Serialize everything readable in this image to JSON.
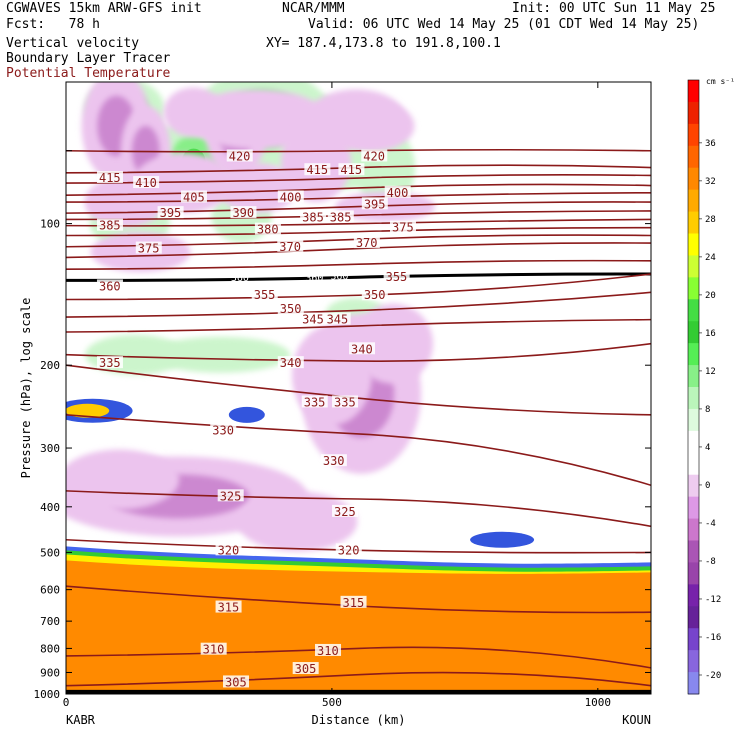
{
  "header": {
    "model": "CGWAVES 15km ARW-GFS init",
    "fcst": "Fcst:   78 h",
    "org": "NCAR/MMM",
    "init": "Init: 00 UTC Sun 11 May 25",
    "valid": "Valid: 06 UTC Wed 14 May 25 (01 CDT Wed 14 May 25)",
    "fields": [
      "Vertical velocity",
      "Boundary Layer Tracer",
      "Potential Temperature"
    ],
    "xy": "XY= 187.4,173.8 to 191.8,100.1",
    "theta_color": "#8b1a1a"
  },
  "chart_data": {
    "type": "heatmap",
    "ylabel": "Pressure (hPa), log scale",
    "xlabel": "Distance (km)",
    "left_station": "KABR",
    "right_station": "KOUN",
    "xlim": [
      0,
      1100
    ],
    "ylim_hpa": [
      1000,
      50
    ],
    "x_ticks": [
      0,
      500,
      1000
    ],
    "y_ticks": [
      100,
      200,
      300,
      400,
      500,
      600,
      700,
      800,
      900,
      1000
    ],
    "colorbar": {
      "unit": "cm s⁻¹",
      "labels": [
        "36",
        "32",
        "28",
        "24",
        "20",
        "16",
        "12",
        "8",
        "4",
        "0",
        "-4",
        "-8",
        "-12",
        "-16",
        "-20"
      ],
      "colors": [
        "#ff0000",
        "#ee2200",
        "#ff4400",
        "#ff6600",
        "#ff8800",
        "#ffaa00",
        "#ffcc00",
        "#ffff00",
        "#ccff33",
        "#88ff33",
        "#44dd44",
        "#33cc33",
        "#55ee55",
        "#88f088",
        "#bbf5bb",
        "#ddfadd",
        "#ffffff",
        "#ffffff",
        "#eeccf0",
        "#dd99e6",
        "#cc77cc",
        "#aa55b5",
        "#9944aa",
        "#7722aa",
        "#662299",
        "#7744cc",
        "#8866dd",
        "#8888ee"
      ]
    },
    "theta_labels": [
      {
        "v": "420",
        "x": 306,
        "p": 72
      },
      {
        "v": "420",
        "x": 559,
        "p": 72
      },
      {
        "v": "415",
        "x": 62,
        "p": 80
      },
      {
        "v": "415",
        "x": 452,
        "p": 77
      },
      {
        "v": "415",
        "x": 516,
        "p": 77
      },
      {
        "v": "410",
        "x": 130,
        "p": 82
      },
      {
        "v": "405",
        "x": 220,
        "p": 88
      },
      {
        "v": "400",
        "x": 402,
        "p": 88
      },
      {
        "v": "400",
        "x": 603,
        "p": 86
      },
      {
        "v": "395",
        "x": 176,
        "p": 95
      },
      {
        "v": "395",
        "x": 560,
        "p": 91
      },
      {
        "v": "390",
        "x": 313,
        "p": 95
      },
      {
        "v": "385",
        "x": 62,
        "p": 101
      },
      {
        "v": "385",
        "x": 444,
        "p": 97
      },
      {
        "v": "385",
        "x": 496,
        "p": 97
      },
      {
        "v": "380",
        "x": 359,
        "p": 103
      },
      {
        "v": "375",
        "x": 135,
        "p": 113
      },
      {
        "v": "375",
        "x": 613,
        "p": 102
      },
      {
        "v": "370",
        "x": 401,
        "p": 112
      },
      {
        "v": "370",
        "x": 545,
        "p": 110
      },
      {
        "v": "360",
        "x": 62,
        "p": 136
      },
      {
        "v": "355",
        "x": 353,
        "p": 142
      },
      {
        "v": "355",
        "x": 601,
        "p": 130
      },
      {
        "v": "350",
        "x": 402,
        "p": 152
      },
      {
        "v": "350",
        "x": 560,
        "p": 142
      },
      {
        "v": "345",
        "x": 444,
        "p": 160
      },
      {
        "v": "345",
        "x": 490,
        "p": 160
      },
      {
        "v": "340",
        "x": 402,
        "p": 198
      },
      {
        "v": "340",
        "x": 536,
        "p": 185
      },
      {
        "v": "335",
        "x": 62,
        "p": 198
      },
      {
        "v": "335",
        "x": 447,
        "p": 240
      },
      {
        "v": "335",
        "x": 504,
        "p": 240
      },
      {
        "v": "330",
        "x": 275,
        "p": 275
      },
      {
        "v": "330",
        "x": 483,
        "p": 320
      },
      {
        "v": "325",
        "x": 289,
        "p": 380
      },
      {
        "v": "325",
        "x": 504,
        "p": 410
      },
      {
        "v": "320",
        "x": 285,
        "p": 495
      },
      {
        "v": "320",
        "x": 511,
        "p": 495
      },
      {
        "v": "315",
        "x": 285,
        "p": 655
      },
      {
        "v": "315",
        "x": 520,
        "p": 640
      },
      {
        "v": "310",
        "x": 257,
        "p": 805
      },
      {
        "v": "310",
        "x": 472,
        "p": 810
      },
      {
        "v": "305",
        "x": 299,
        "p": 945
      },
      {
        "v": "305",
        "x": 430,
        "p": 885
      }
    ],
    "tropopause_labels": [
      {
        "v": "360",
        "x": 450,
        "p": 130
      },
      {
        "v": "360",
        "x": 497,
        "p": 129
      },
      {
        "v": "360",
        "x": 310,
        "p": 130
      }
    ],
    "theta_lines": [
      {
        "v": 420,
        "p": [
          70,
          70,
          70
        ]
      },
      {
        "v": 415,
        "p": [
          78,
          76,
          76
        ]
      },
      {
        "v": 410,
        "p": [
          82,
          80,
          79
        ]
      },
      {
        "v": 405,
        "p": [
          87,
          84,
          83
        ]
      },
      {
        "v": 400,
        "p": [
          90,
          88,
          86
        ]
      },
      {
        "v": 395,
        "p": [
          95,
          92,
          90
        ]
      },
      {
        "v": 390,
        "p": [
          98,
          96,
          94
        ]
      },
      {
        "v": 385,
        "p": [
          101,
          100,
          98
        ]
      },
      {
        "v": 380,
        "p": [
          106,
          104,
          102
        ]
      },
      {
        "v": 375,
        "p": [
          112,
          108,
          106
        ]
      },
      {
        "v": 370,
        "p": [
          118,
          113,
          110
        ]
      },
      {
        "v": 365,
        "p": [
          125,
          122,
          120
        ]
      },
      {
        "v": 360,
        "p": [
          132,
          130,
          128
        ]
      },
      {
        "v": 355,
        "p": [
          145,
          142,
          128
        ]
      },
      {
        "v": 350,
        "p": [
          158,
          153,
          140
        ]
      },
      {
        "v": 345,
        "p": [
          170,
          165,
          160
        ]
      },
      {
        "v": 340,
        "p": [
          190,
          196,
          180
        ]
      },
      {
        "v": 335,
        "p": [
          200,
          235,
          255
        ]
      },
      {
        "v": 330,
        "p": [
          255,
          280,
          360
        ]
      },
      {
        "v": 325,
        "p": [
          370,
          385,
          440
        ]
      },
      {
        "v": 320,
        "p": [
          470,
          495,
          500
        ]
      },
      {
        "v": 315,
        "p": [
          590,
          650,
          670
        ]
      },
      {
        "v": 310,
        "p": [
          830,
          800,
          880
        ]
      },
      {
        "v": 305,
        "p": [
          960,
          910,
          960
        ]
      }
    ],
    "updraft_regions": [
      {
        "x": 110,
        "p": 57,
        "rx": 40,
        "ry": 30,
        "level": 2
      },
      {
        "x": 370,
        "p": 60,
        "rx": 70,
        "ry": 50,
        "level": 3
      },
      {
        "x": 470,
        "p": 62,
        "rx": 40,
        "ry": 30,
        "level": 1
      },
      {
        "x": 280,
        "p": 62,
        "rx": 30,
        "ry": 30,
        "level": 1
      },
      {
        "x": 140,
        "p": 74,
        "rx": 40,
        "ry": 45,
        "level": 1
      },
      {
        "x": 240,
        "p": 74,
        "rx": 40,
        "ry": 45,
        "level": 3
      },
      {
        "x": 510,
        "p": 73,
        "rx": 60,
        "ry": 30,
        "level": 1
      },
      {
        "x": 600,
        "p": 76,
        "rx": 30,
        "ry": 40,
        "level": 1
      },
      {
        "x": 120,
        "p": 100,
        "rx": 40,
        "ry": 25,
        "level": 1
      },
      {
        "x": 330,
        "p": 97,
        "rx": 30,
        "ry": 25,
        "level": 1
      },
      {
        "x": 130,
        "p": 190,
        "rx": 50,
        "ry": 20,
        "level": 1
      },
      {
        "x": 290,
        "p": 190,
        "rx": 70,
        "ry": 18,
        "level": 1
      },
      {
        "x": 545,
        "p": 155,
        "rx": 30,
        "ry": 15,
        "level": 1
      }
    ],
    "downdraft_regions": [
      {
        "x": 95,
        "p": 62,
        "rx": 35,
        "ry": 55,
        "level": 2
      },
      {
        "x": 150,
        "p": 70,
        "rx": 25,
        "ry": 45,
        "level": 2
      },
      {
        "x": 320,
        "p": 65,
        "rx": 30,
        "ry": 40,
        "level": 2
      },
      {
        "x": 240,
        "p": 58,
        "rx": 30,
        "ry": 25,
        "level": 1
      },
      {
        "x": 360,
        "p": 60,
        "rx": 70,
        "ry": 30,
        "level": 1
      },
      {
        "x": 545,
        "p": 60,
        "rx": 50,
        "ry": 30,
        "level": 1
      },
      {
        "x": 470,
        "p": 74,
        "rx": 35,
        "ry": 40,
        "level": 1
      },
      {
        "x": 580,
        "p": 62,
        "rx": 40,
        "ry": 25,
        "level": 1
      },
      {
        "x": 220,
        "p": 82,
        "rx": 50,
        "ry": 30,
        "level": 1
      },
      {
        "x": 110,
        "p": 90,
        "rx": 40,
        "ry": 25,
        "level": 1
      },
      {
        "x": 360,
        "p": 84,
        "rx": 40,
        "ry": 25,
        "level": 1
      },
      {
        "x": 600,
        "p": 92,
        "rx": 50,
        "ry": 15,
        "level": 1
      },
      {
        "x": 140,
        "p": 115,
        "rx": 50,
        "ry": 20,
        "level": 1
      },
      {
        "x": 210,
        "p": 380,
        "rx": 130,
        "ry": 40,
        "level": 2
      },
      {
        "x": 100,
        "p": 350,
        "rx": 60,
        "ry": 30,
        "level": 1
      },
      {
        "x": 555,
        "p": 230,
        "rx": 60,
        "ry": 80,
        "level": 2
      },
      {
        "x": 615,
        "p": 180,
        "rx": 40,
        "ry": 40,
        "level": 1
      },
      {
        "x": 500,
        "p": 210,
        "rx": 40,
        "ry": 50,
        "level": 1
      },
      {
        "x": 435,
        "p": 430,
        "rx": 60,
        "ry": 30,
        "level": 1
      }
    ],
    "boundary_layer_top_hpa": 500
  }
}
